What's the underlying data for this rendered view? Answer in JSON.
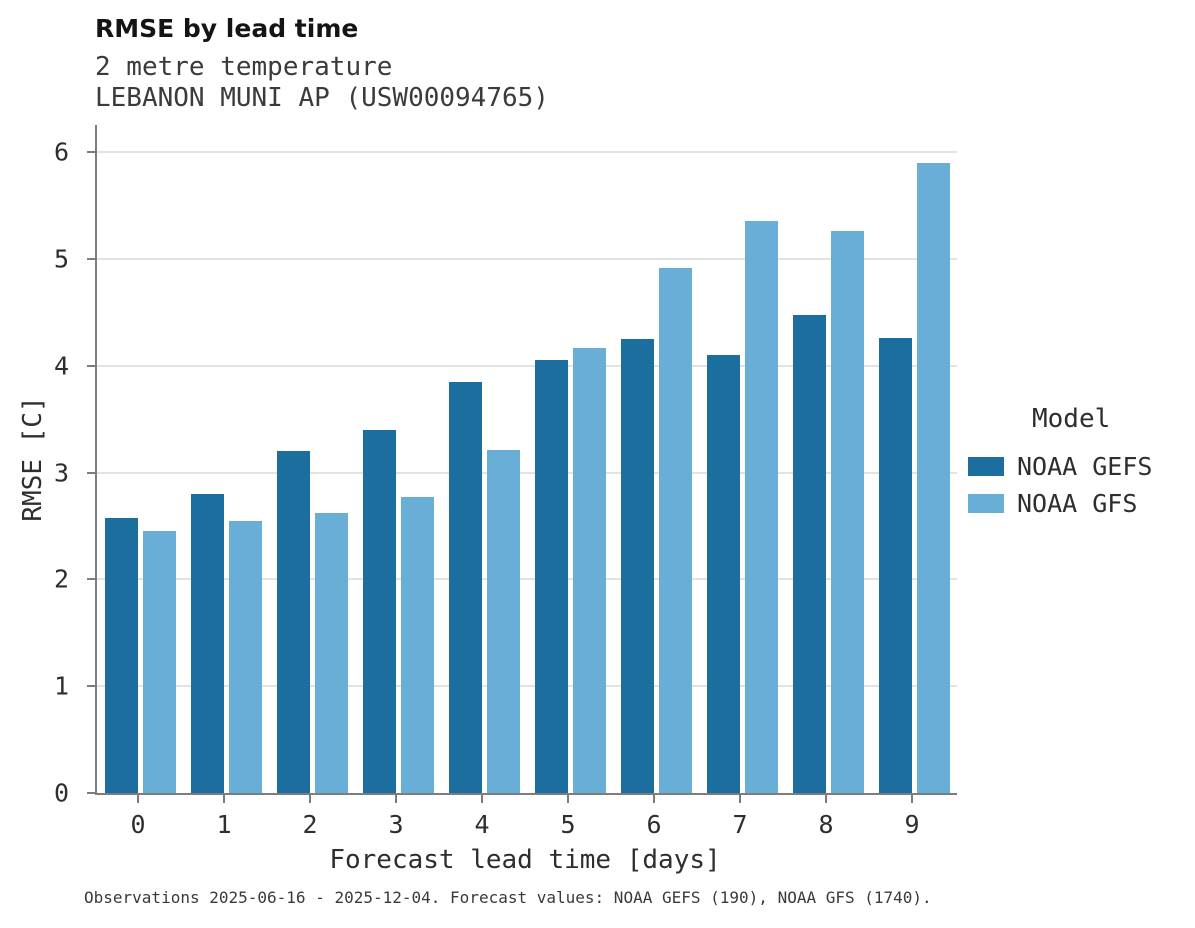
{
  "header": {
    "title": "RMSE by lead time",
    "subtitle_variable": "2 metre temperature",
    "subtitle_station": "LEBANON MUNI AP (USW00094765)"
  },
  "caption": "Observations 2025-06-16 - 2025-12-04. Forecast values: NOAA GEFS (190), NOAA GFS (1740).",
  "legend": {
    "title": "Model",
    "entries": [
      {
        "label": "NOAA GEFS",
        "color": "#1c6e9e"
      },
      {
        "label": "NOAA GFS",
        "color": "#69aed6"
      }
    ]
  },
  "chart_data": {
    "type": "bar",
    "title": "RMSE by lead time",
    "subtitle": "2 metre temperature — LEBANON MUNI AP (USW00094765)",
    "xlabel": "Forecast lead time [days]",
    "ylabel": "RMSE [C]",
    "categories": [
      0,
      1,
      2,
      3,
      4,
      5,
      6,
      7,
      8,
      9
    ],
    "series": [
      {
        "name": "NOAA GEFS",
        "color": "#1c6e9e",
        "values": [
          2.57,
          2.8,
          3.2,
          3.4,
          3.85,
          4.05,
          4.25,
          4.1,
          4.47,
          4.26
        ]
      },
      {
        "name": "NOAA GFS",
        "color": "#69aed6",
        "values": [
          2.45,
          2.55,
          2.62,
          2.77,
          3.21,
          4.17,
          4.91,
          5.35,
          5.26,
          5.9
        ]
      }
    ],
    "ylim": [
      0,
      6
    ],
    "yticks": [
      0,
      1,
      2,
      3,
      4,
      5,
      6
    ],
    "grid": true,
    "legend_position": "right"
  }
}
